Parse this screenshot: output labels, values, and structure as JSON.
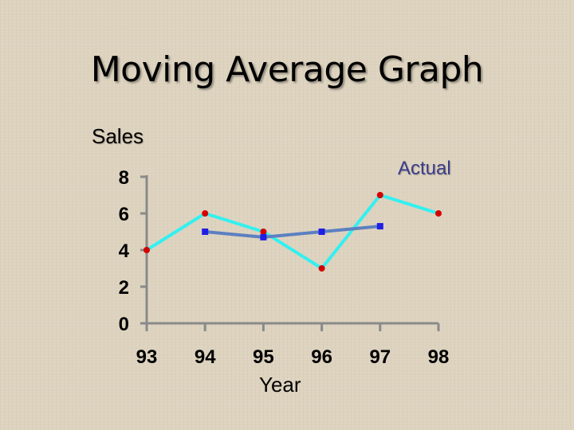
{
  "slide": {
    "title": "Moving Average Graph"
  },
  "chart_data": {
    "type": "line",
    "title": "",
    "ylabel": "Sales",
    "xlabel": "Year",
    "x": [
      "93",
      "94",
      "95",
      "96",
      "97",
      "98"
    ],
    "ylim": [
      0,
      8
    ],
    "yticks": [
      0,
      2,
      4,
      6,
      8
    ],
    "grid": false,
    "series": [
      {
        "name": "Actual",
        "values": [
          4,
          6,
          5,
          3,
          7,
          6
        ],
        "line_color": "#33f0f0",
        "marker_color": "#d40000",
        "marker": "circle"
      },
      {
        "name": "",
        "values": [
          null,
          5,
          4.7,
          5,
          5.3,
          null
        ],
        "line_color": "#5c80c0",
        "marker_color": "#1f1fe6",
        "marker": "square"
      }
    ]
  }
}
